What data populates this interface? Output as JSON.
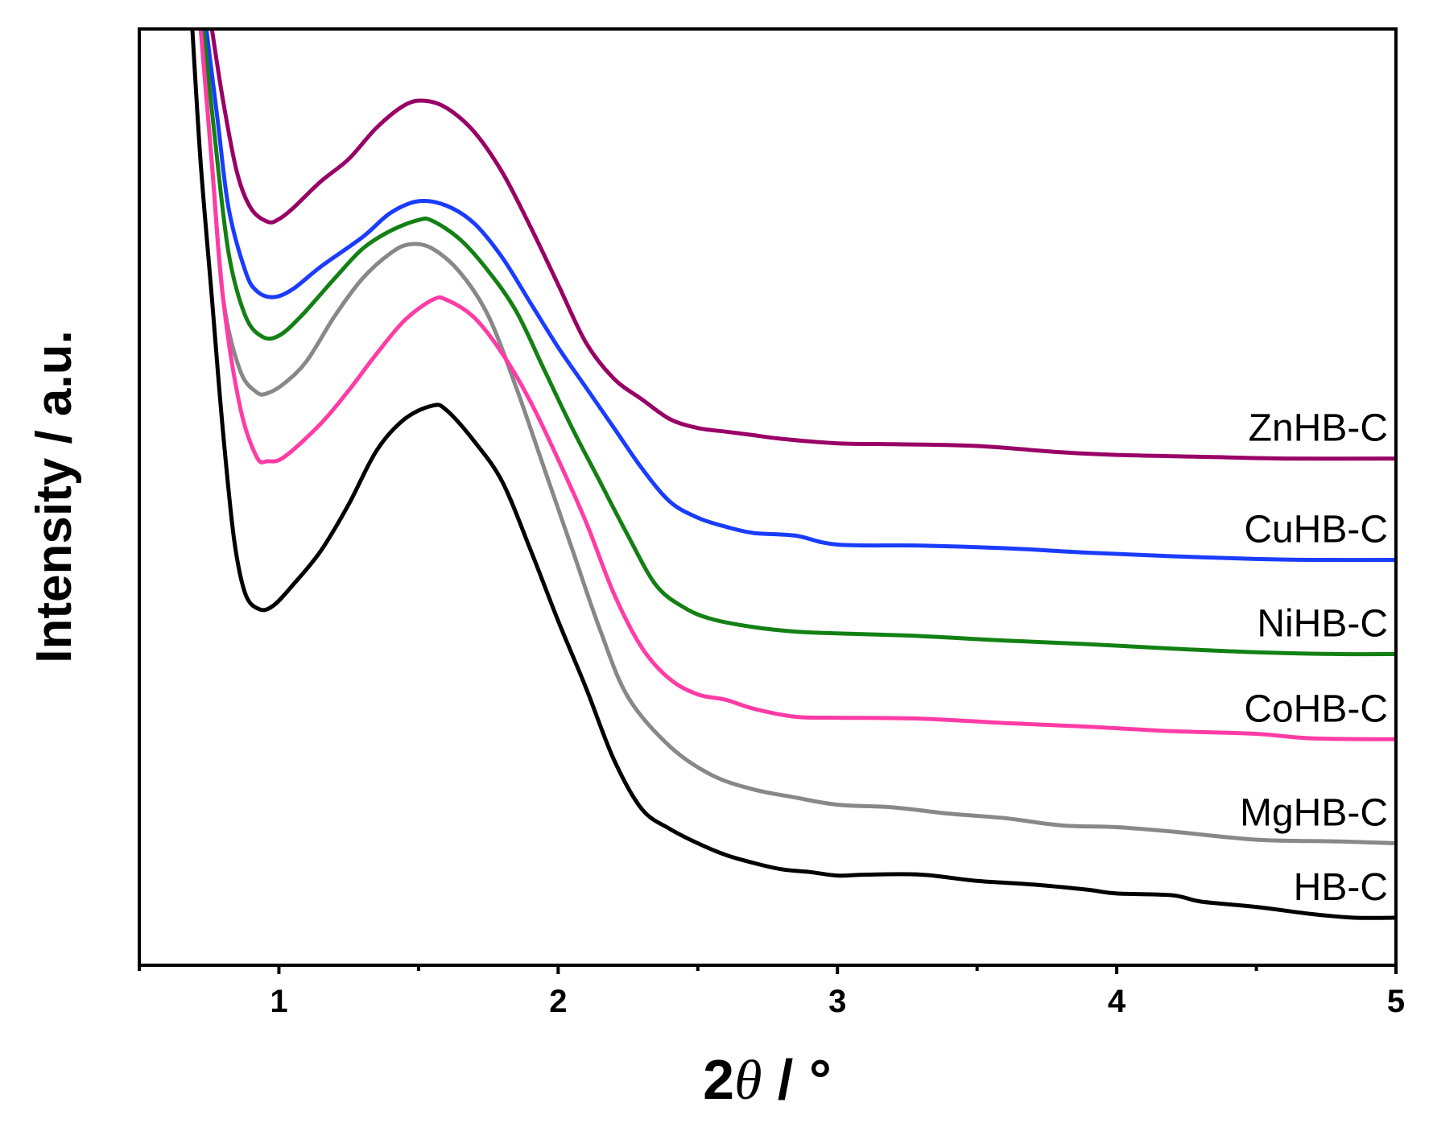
{
  "chart_data": {
    "type": "line",
    "title": "",
    "xlabel": "2θ / °",
    "xlabel_parts": {
      "main": "2",
      "italic": "θ",
      "rest": " / °"
    },
    "ylabel": "Intensity / a.u.",
    "xlim": [
      0.5,
      5.0
    ],
    "ylim": [
      0,
      100
    ],
    "x_ticks": [
      1,
      2,
      3,
      4,
      5
    ],
    "x_minor_ticks": [
      0.5,
      1.5,
      2.5,
      3.5,
      4.5
    ],
    "y_ticks_shown": false,
    "grid": false,
    "legend": "inline-right",
    "series": [
      {
        "name": "ZnHB-C",
        "color": "#990066",
        "points": [
          [
            0.76,
            100
          ],
          [
            0.8,
            92
          ],
          [
            0.85,
            84
          ],
          [
            0.9,
            80
          ],
          [
            0.96,
            78.5
          ],
          [
            1.0,
            78.8
          ],
          [
            1.05,
            80
          ],
          [
            1.15,
            83
          ],
          [
            1.25,
            85.5
          ],
          [
            1.35,
            89
          ],
          [
            1.45,
            91.5
          ],
          [
            1.52,
            92
          ],
          [
            1.6,
            91.2
          ],
          [
            1.7,
            88.5
          ],
          [
            1.8,
            84
          ],
          [
            1.9,
            78
          ],
          [
            2.0,
            71.5
          ],
          [
            2.1,
            65
          ],
          [
            2.2,
            61
          ],
          [
            2.3,
            58.7
          ],
          [
            2.4,
            56.5
          ],
          [
            2.5,
            55.5
          ],
          [
            2.6,
            55.1
          ],
          [
            2.7,
            54.7
          ],
          [
            2.8,
            54.3
          ],
          [
            3.0,
            53.8
          ],
          [
            3.2,
            53.7
          ],
          [
            3.5,
            53.5
          ],
          [
            3.8,
            52.8
          ],
          [
            4.0,
            52.5
          ],
          [
            4.3,
            52.3
          ],
          [
            4.6,
            52.1
          ],
          [
            5.0,
            52.1
          ]
        ]
      },
      {
        "name": "CuHB-C",
        "color": "#1a3cff",
        "points": [
          [
            0.74,
            100
          ],
          [
            0.78,
            90
          ],
          [
            0.82,
            80
          ],
          [
            0.88,
            73
          ],
          [
            0.92,
            70.8
          ],
          [
            0.98,
            70.1
          ],
          [
            1.05,
            71
          ],
          [
            1.15,
            73.5
          ],
          [
            1.3,
            76.8
          ],
          [
            1.4,
            79.5
          ],
          [
            1.5,
            80.8
          ],
          [
            1.6,
            80.3
          ],
          [
            1.7,
            78.3
          ],
          [
            1.8,
            74.5
          ],
          [
            1.9,
            69.5
          ],
          [
            2.0,
            64.5
          ],
          [
            2.1,
            60
          ],
          [
            2.2,
            55.5
          ],
          [
            2.3,
            51
          ],
          [
            2.4,
            47.3
          ],
          [
            2.5,
            45.5
          ],
          [
            2.6,
            44.5
          ],
          [
            2.7,
            43.8
          ],
          [
            2.85,
            43.5
          ],
          [
            3.0,
            42.5
          ],
          [
            3.3,
            42.4
          ],
          [
            3.6,
            42.1
          ],
          [
            3.9,
            41.6
          ],
          [
            4.2,
            41.2
          ],
          [
            4.5,
            40.9
          ],
          [
            4.7,
            40.8
          ],
          [
            5.0,
            40.8
          ]
        ]
      },
      {
        "name": "NiHB-C",
        "color": "#138013",
        "points": [
          [
            0.73,
            100
          ],
          [
            0.77,
            88
          ],
          [
            0.82,
            75
          ],
          [
            0.88,
            68
          ],
          [
            0.94,
            65.7
          ],
          [
            1.0,
            65.8
          ],
          [
            1.08,
            68
          ],
          [
            1.2,
            72.2
          ],
          [
            1.3,
            75.5
          ],
          [
            1.4,
            77.5
          ],
          [
            1.5,
            78.7
          ],
          [
            1.55,
            78.6
          ],
          [
            1.65,
            76.5
          ],
          [
            1.75,
            73
          ],
          [
            1.85,
            68.5
          ],
          [
            1.95,
            62
          ],
          [
            2.05,
            55.5
          ],
          [
            2.15,
            49.5
          ],
          [
            2.25,
            43.5
          ],
          [
            2.35,
            38
          ],
          [
            2.45,
            35.5
          ],
          [
            2.55,
            34.2
          ],
          [
            2.7,
            33.3
          ],
          [
            2.85,
            32.8
          ],
          [
            3.0,
            32.6
          ],
          [
            3.3,
            32.3
          ],
          [
            3.6,
            31.8
          ],
          [
            3.9,
            31.4
          ],
          [
            4.2,
            30.9
          ],
          [
            4.5,
            30.5
          ],
          [
            4.8,
            30.3
          ],
          [
            5.0,
            30.3
          ]
        ]
      },
      {
        "name": "MgHB-C",
        "color": "#888888",
        "points": [
          [
            0.72,
            100
          ],
          [
            0.76,
            85
          ],
          [
            0.8,
            70
          ],
          [
            0.86,
            62
          ],
          [
            0.92,
            59.5
          ],
          [
            0.96,
            59.4
          ],
          [
            1.02,
            60.5
          ],
          [
            1.1,
            63
          ],
          [
            1.2,
            68
          ],
          [
            1.3,
            72.2
          ],
          [
            1.4,
            75
          ],
          [
            1.47,
            76
          ],
          [
            1.55,
            75.5
          ],
          [
            1.65,
            72.8
          ],
          [
            1.75,
            68
          ],
          [
            1.85,
            60
          ],
          [
            1.95,
            51
          ],
          [
            2.05,
            42
          ],
          [
            2.15,
            33
          ],
          [
            2.25,
            25.5
          ],
          [
            2.4,
            20
          ],
          [
            2.55,
            16.8
          ],
          [
            2.7,
            15.2
          ],
          [
            2.85,
            14.3
          ],
          [
            3.0,
            13.5
          ],
          [
            3.2,
            13.2
          ],
          [
            3.4,
            12.5
          ],
          [
            3.6,
            12.0
          ],
          [
            3.8,
            11.2
          ],
          [
            4.0,
            11.0
          ],
          [
            4.2,
            10.5
          ],
          [
            4.5,
            9.6
          ],
          [
            4.8,
            9.4
          ],
          [
            5.0,
            9.2
          ]
        ]
      },
      {
        "name": "CoHB-C",
        "color": "#ff3ca6",
        "points": [
          [
            0.72,
            100
          ],
          [
            0.76,
            85
          ],
          [
            0.8,
            70
          ],
          [
            0.86,
            58
          ],
          [
            0.92,
            52.3
          ],
          [
            0.96,
            51.8
          ],
          [
            1.02,
            52.3
          ],
          [
            1.15,
            56
          ],
          [
            1.25,
            59.7
          ],
          [
            1.35,
            63.8
          ],
          [
            1.45,
            67.5
          ],
          [
            1.55,
            69.8
          ],
          [
            1.6,
            69.8
          ],
          [
            1.7,
            67.8
          ],
          [
            1.8,
            63.8
          ],
          [
            1.9,
            58.5
          ],
          [
            2.0,
            52
          ],
          [
            2.1,
            45
          ],
          [
            2.2,
            37
          ],
          [
            2.3,
            31
          ],
          [
            2.4,
            27.5
          ],
          [
            2.5,
            25.8
          ],
          [
            2.6,
            25.2
          ],
          [
            2.7,
            24.2
          ],
          [
            2.85,
            23.3
          ],
          [
            3.0,
            23.2
          ],
          [
            3.3,
            23.1
          ],
          [
            3.6,
            22.6
          ],
          [
            3.9,
            22.2
          ],
          [
            4.2,
            21.7
          ],
          [
            4.5,
            21.4
          ],
          [
            4.7,
            20.9
          ],
          [
            5.0,
            20.8
          ]
        ]
      },
      {
        "name": "HB-C",
        "color": "#000000",
        "points": [
          [
            0.69,
            100
          ],
          [
            0.72,
            85
          ],
          [
            0.76,
            70
          ],
          [
            0.8,
            55
          ],
          [
            0.84,
            43
          ],
          [
            0.88,
            37
          ],
          [
            0.93,
            35.3
          ],
          [
            0.98,
            35.7
          ],
          [
            1.05,
            38
          ],
          [
            1.15,
            41.8
          ],
          [
            1.25,
            47
          ],
          [
            1.35,
            53
          ],
          [
            1.45,
            56.5
          ],
          [
            1.55,
            58
          ],
          [
            1.6,
            57.5
          ],
          [
            1.7,
            54
          ],
          [
            1.8,
            49.5
          ],
          [
            1.9,
            42
          ],
          [
            2.0,
            34
          ],
          [
            2.1,
            26.5
          ],
          [
            2.2,
            18.5
          ],
          [
            2.3,
            13
          ],
          [
            2.4,
            10.8
          ],
          [
            2.5,
            9.2
          ],
          [
            2.6,
            7.9
          ],
          [
            2.7,
            7.0
          ],
          [
            2.8,
            6.3
          ],
          [
            2.9,
            6.0
          ],
          [
            3.0,
            5.6
          ],
          [
            3.1,
            5.7
          ],
          [
            3.3,
            5.7
          ],
          [
            3.5,
            5.0
          ],
          [
            3.7,
            4.6
          ],
          [
            3.9,
            4.0
          ],
          [
            4.0,
            3.6
          ],
          [
            4.2,
            3.4
          ],
          [
            4.3,
            2.7
          ],
          [
            4.5,
            2.1
          ],
          [
            4.7,
            1.3
          ],
          [
            4.85,
            0.9
          ],
          [
            5.0,
            0.9
          ]
        ]
      }
    ]
  }
}
